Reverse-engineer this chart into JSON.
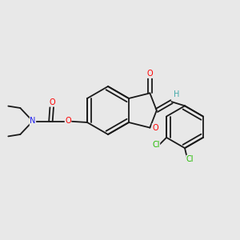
{
  "background_color": "#e8e8e8",
  "bond_color": "#1a1a1a",
  "atom_colors": {
    "O": "#ff0000",
    "N": "#2222ee",
    "Cl": "#22bb00",
    "H": "#44aaaa",
    "C": "#1a1a1a"
  },
  "figsize": [
    3.0,
    3.0
  ],
  "dpi": 100,
  "lw": 1.3,
  "fs": 7.0
}
